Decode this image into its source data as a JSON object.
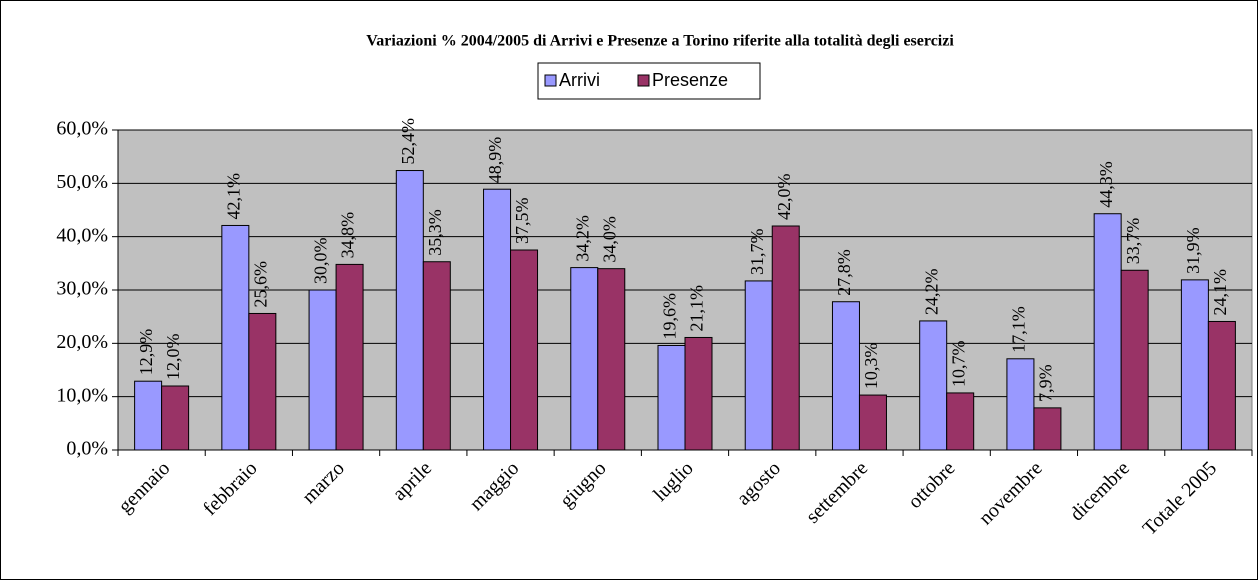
{
  "chart_data": {
    "type": "bar",
    "title": "Variazioni % 2004/2005 di Arrivi e Presenze a Torino riferite alla totalità degli esercizi",
    "categories": [
      "gennaio",
      "febbraio",
      "marzo",
      "aprile",
      "maggio",
      "giugno",
      "luglio",
      "agosto",
      "settembre",
      "ottobre",
      "novembre",
      "dicembre",
      "Totale 2005"
    ],
    "series": [
      {
        "name": "Arrivi",
        "color": "#9999ff",
        "values": [
          12.9,
          42.1,
          30.0,
          52.4,
          48.9,
          34.2,
          19.6,
          31.7,
          27.8,
          24.2,
          17.1,
          44.3,
          31.9
        ],
        "value_labels": [
          "12,9%",
          "42,1%",
          "30,0%",
          "52,4%",
          "48,9%",
          "34,2%",
          "19,6%",
          "31,7%",
          "27,8%",
          "24,2%",
          "17,1%",
          "44,3%",
          "31,9%"
        ]
      },
      {
        "name": "Presenze",
        "color": "#993366",
        "values": [
          12.0,
          25.6,
          34.8,
          35.3,
          37.5,
          34.0,
          21.1,
          42.0,
          10.3,
          10.7,
          7.9,
          33.7,
          24.1
        ],
        "value_labels": [
          "12,0%",
          "25,6%",
          "34,8%",
          "35,3%",
          "37,5%",
          "34,0%",
          "21,1%",
          "42,0%",
          "10,3%",
          "10,7%",
          "7,9%",
          "33,7%",
          "24,1%"
        ]
      }
    ],
    "ylim": [
      0,
      60
    ],
    "yticks": [
      {
        "value": 0,
        "label": "0,0%"
      },
      {
        "value": 10,
        "label": "10,0%"
      },
      {
        "value": 20,
        "label": "20,0%"
      },
      {
        "value": 30,
        "label": "30,0%"
      },
      {
        "value": 40,
        "label": "40,0%"
      },
      {
        "value": 50,
        "label": "50,0%"
      },
      {
        "value": 60,
        "label": "60,0%"
      }
    ],
    "grid": true,
    "legend": "top"
  }
}
